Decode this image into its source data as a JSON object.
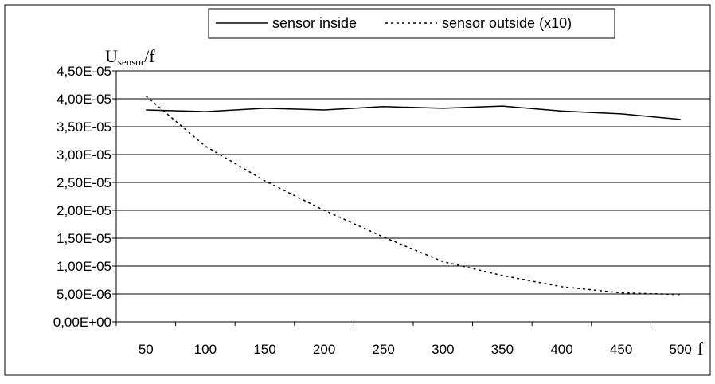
{
  "chart_data": {
    "type": "line",
    "title": "",
    "xlabel": "f",
    "ylabel": {
      "main": "U",
      "subscript": "sensor",
      "suffix": "/f"
    },
    "x": [
      50,
      100,
      150,
      200,
      250,
      300,
      350,
      400,
      450,
      500
    ],
    "x_tick_labels": [
      "50",
      "100",
      "150",
      "200",
      "250",
      "300",
      "350",
      "400",
      "450",
      "500"
    ],
    "ylim": [
      0,
      4.5e-05
    ],
    "y_ticks": [
      0,
      5e-06,
      1e-05,
      1.5e-05,
      2e-05,
      2.5e-05,
      3e-05,
      3.5e-05,
      4e-05,
      4.5e-05
    ],
    "y_tick_labels": [
      "0,00E+00",
      "5,00E-06",
      "1,00E-05",
      "1,50E-05",
      "2,00E-05",
      "2,50E-05",
      "3,00E-05",
      "3,50E-05",
      "4,00E-05",
      "4,50E-05"
    ],
    "grid": "horizontal",
    "legend_position": "top",
    "series": [
      {
        "name": "sensor inside",
        "style": "solid",
        "color": "#000000",
        "values": [
          3.8e-05,
          3.77e-05,
          3.83e-05,
          3.8e-05,
          3.86e-05,
          3.83e-05,
          3.87e-05,
          3.78e-05,
          3.73e-05,
          3.63e-05
        ]
      },
      {
        "name": "sensor outside (x10)",
        "style": "dotted",
        "color": "#000000",
        "values": [
          4.05e-05,
          3.15e-05,
          2.53e-05,
          2e-05,
          1.52e-05,
          1.08e-05,
          8.3e-06,
          6.3e-06,
          5.2e-06,
          4.9e-06
        ]
      }
    ]
  }
}
